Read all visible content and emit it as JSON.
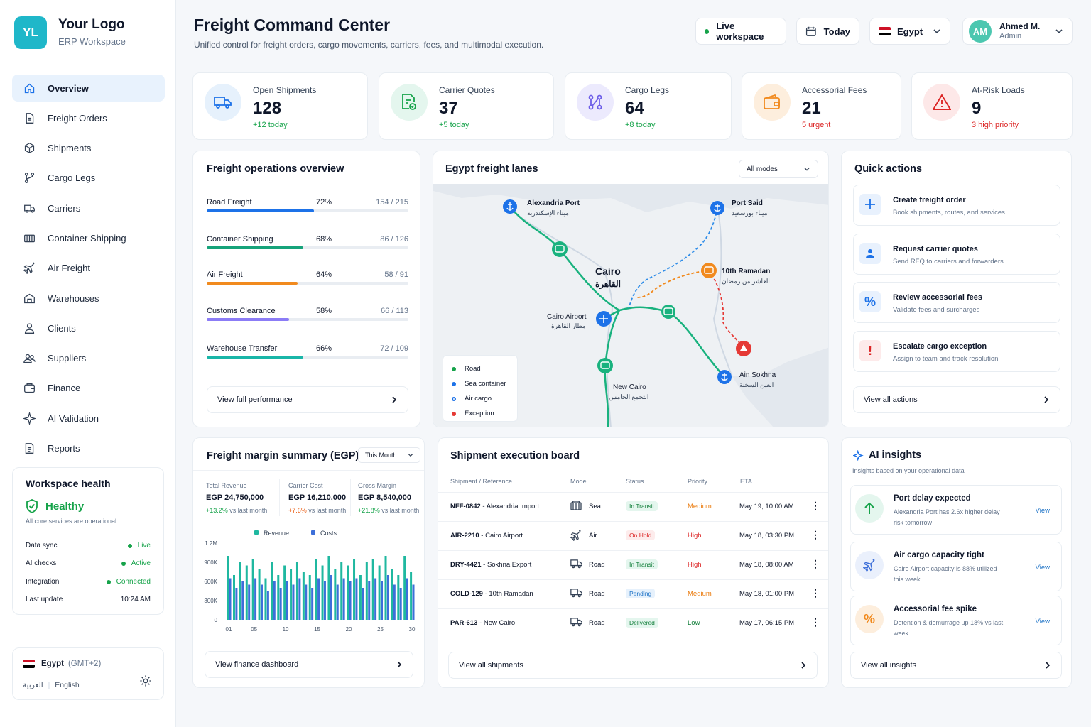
{
  "brand": {
    "initials": "YL",
    "title": "Your Logo",
    "subtitle": "ERP Workspace"
  },
  "nav": [
    {
      "label": "Overview",
      "icon": "home-icon"
    },
    {
      "label": "Freight Orders",
      "icon": "document-icon"
    },
    {
      "label": "Shipments",
      "icon": "box-icon"
    },
    {
      "label": "Cargo Legs",
      "icon": "route-icon"
    },
    {
      "label": "Carriers",
      "icon": "truck-icon"
    },
    {
      "label": "Container Shipping",
      "icon": "container-icon"
    },
    {
      "label": "Air Freight",
      "icon": "plane-icon"
    },
    {
      "label": "Warehouses",
      "icon": "warehouse-icon"
    },
    {
      "label": "Clients",
      "icon": "user-icon"
    },
    {
      "label": "Suppliers",
      "icon": "users-icon"
    },
    {
      "label": "Finance",
      "icon": "wallet-icon"
    },
    {
      "label": "AI Validation",
      "icon": "sparkle-icon"
    },
    {
      "label": "Reports",
      "icon": "report-icon"
    }
  ],
  "health": {
    "title": "Workspace health",
    "status": "Healthy",
    "desc": "All core services are operational",
    "rows": [
      {
        "label": "Data sync",
        "value": "Live"
      },
      {
        "label": "AI checks",
        "value": "Active"
      },
      {
        "label": "Integration",
        "value": "Connected"
      },
      {
        "label": "Last update",
        "value": "10:24 AM"
      }
    ]
  },
  "locale": {
    "country": "Egypt",
    "tz": "(GMT+2)",
    "lang_ar": "العربية",
    "sep": "|",
    "lang_en": "English"
  },
  "header": {
    "title": "Freight Command Center",
    "subtitle": "Unified control for freight orders, cargo movements, carriers, fees, and multimodal execution.",
    "live": "Live workspace",
    "date": "Today",
    "country": "Egypt",
    "user_initials": "AM",
    "user_name": "Ahmed M.",
    "user_role": "Admin"
  },
  "kpis": [
    {
      "label": "Open Shipments",
      "value": "128",
      "change": "+12 today"
    },
    {
      "label": "Carrier Quotes",
      "value": "37",
      "change": "+5 today"
    },
    {
      "label": "Cargo Legs",
      "value": "64",
      "change": "+8 today"
    },
    {
      "label": "Accessorial Fees",
      "value": "21",
      "change": "5 urgent"
    },
    {
      "label": "At-Risk Loads",
      "value": "9",
      "change": "3 high priority"
    }
  ],
  "ops": {
    "title": "Freight operations overview",
    "rows": [
      {
        "name": "Road Freight",
        "pct": "72%",
        "ratio": "154 / 215",
        "fill": 0.53,
        "color": "#1d72e8"
      },
      {
        "name": "Container Shipping",
        "pct": "68%",
        "ratio": "86 / 126",
        "fill": 0.48,
        "color": "#16a37a"
      },
      {
        "name": "Air Freight",
        "pct": "64%",
        "ratio": "58 / 91",
        "fill": 0.45,
        "color": "#f18a1e"
      },
      {
        "name": "Customs Clearance",
        "pct": "58%",
        "ratio": "66 / 113",
        "fill": 0.41,
        "color": "#8b7cf6"
      },
      {
        "name": "Warehouse Transfer",
        "pct": "66%",
        "ratio": "72 / 109",
        "fill": 0.48,
        "color": "#19b6a8"
      }
    ],
    "link": "View full performance"
  },
  "map": {
    "title": "Egypt freight lanes",
    "filter": "All modes",
    "labels": {
      "alex_en": "Alexandria Port",
      "alex_ar": "ميناء الإسكندرية",
      "said_en": "Port Said",
      "said_ar": "ميناء بورسعيد",
      "cairo_en": "Cairo",
      "cairo_ar": "القاهرة",
      "ramadan_en": "10th Ramadan",
      "ramadan_ar": "العاشر من رمضان",
      "airport_en": "Cairo Airport",
      "airport_ar": "مطار القاهرة",
      "sokhna_en": "Ain Sokhna",
      "sokhna_ar": "العين السخنة",
      "newcairo_en": "New Cairo",
      "newcairo_ar": "التجمع الخامس"
    },
    "legend": [
      {
        "label": "Road",
        "color": "#16a34a"
      },
      {
        "label": "Sea container",
        "color": "#1d72e8"
      },
      {
        "label": "Air cargo",
        "color": "#1d72e8"
      },
      {
        "label": "Exception",
        "color": "#e53935"
      }
    ]
  },
  "quick": {
    "title": "Quick actions",
    "items": [
      {
        "title": "Create freight order",
        "desc": "Book shipments, routes, and services"
      },
      {
        "title": "Request carrier quotes",
        "desc": "Send RFQ to carriers and forwarders"
      },
      {
        "title": "Review accessorial fees",
        "desc": "Validate fees and surcharges"
      },
      {
        "title": "Escalate cargo exception",
        "desc": "Assign to team and track resolution"
      }
    ],
    "link": "View all actions"
  },
  "finance": {
    "title": "Freight margin summary (EGP)",
    "period": "This Month",
    "metrics": [
      {
        "label": "Total Revenue",
        "value": "EGP 24,750,000",
        "delta": "+13.2%",
        "note": "vs last month"
      },
      {
        "label": "Carrier Cost",
        "value": "EGP 16,210,000",
        "delta": "+7.6%",
        "note": "vs last month"
      },
      {
        "label": "Gross Margin",
        "value": "EGP 8,540,000",
        "delta": "+21.8%",
        "note": "vs last month"
      }
    ],
    "link": "View finance dashboard"
  },
  "chart_data": {
    "type": "bar",
    "series": [
      {
        "name": "Revenue",
        "color": "#1fb8a0",
        "values": [
          1000,
          700,
          900,
          850,
          950,
          800,
          650,
          900,
          700,
          850,
          800,
          900,
          750,
          700,
          950,
          850,
          1000,
          800,
          900,
          850,
          950,
          700,
          900,
          950,
          850,
          1000,
          800,
          700,
          1000,
          750
        ]
      },
      {
        "name": "Costs",
        "color": "#3d6fd9",
        "values": [
          650,
          500,
          600,
          550,
          650,
          550,
          450,
          600,
          500,
          600,
          550,
          650,
          550,
          500,
          650,
          600,
          700,
          550,
          650,
          600,
          650,
          500,
          600,
          650,
          600,
          700,
          550,
          500,
          650,
          550
        ]
      }
    ],
    "categories": [
      "01",
      "02",
      "03",
      "04",
      "05",
      "06",
      "07",
      "08",
      "09",
      "10",
      "11",
      "12",
      "13",
      "14",
      "15",
      "16",
      "17",
      "18",
      "19",
      "20",
      "21",
      "22",
      "23",
      "24",
      "25",
      "26",
      "27",
      "28",
      "29",
      "30"
    ],
    "xticks": [
      "01",
      "05",
      "10",
      "15",
      "20",
      "25",
      "30"
    ],
    "yticks": [
      "1.2M",
      "900K",
      "600K",
      "300K",
      "0"
    ],
    "ylim": [
      0,
      1200
    ]
  },
  "board": {
    "title": "Shipment execution board",
    "headers": [
      "Shipment / Reference",
      "Mode",
      "Status",
      "Priority",
      "ETA"
    ],
    "rows": [
      {
        "id": "NFF-0842",
        "ref": "Alexandria Import",
        "mode": "Sea",
        "status": "In Transit",
        "priority": "Medium",
        "eta": "May 19, 10:00 AM"
      },
      {
        "id": "AIR-2210",
        "ref": "Cairo Airport",
        "mode": "Air",
        "status": "On Hold",
        "priority": "High",
        "eta": "May 18, 03:30 PM"
      },
      {
        "id": "DRY-4421",
        "ref": "Sokhna Export",
        "mode": "Road",
        "status": "In Transit",
        "priority": "High",
        "eta": "May 18, 08:00 AM"
      },
      {
        "id": "COLD-129",
        "ref": "10th Ramadan",
        "mode": "Road",
        "status": "Pending",
        "priority": "Medium",
        "eta": "May 18, 01:00 PM"
      },
      {
        "id": "PAR-613",
        "ref": "New Cairo",
        "mode": "Road",
        "status": "Delivered",
        "priority": "Low",
        "eta": "May 17, 06:15 PM"
      }
    ],
    "link": "View all shipments"
  },
  "insights": {
    "title": "AI insights",
    "subtitle": "Insights based on your operational data",
    "items": [
      {
        "title": "Port delay expected",
        "desc": "Alexandria Port has 2.6x higher delay risk tomorrow",
        "link": "View"
      },
      {
        "title": "Air cargo capacity tight",
        "desc": "Cairo Airport capacity is 88% utilized this week",
        "link": "View"
      },
      {
        "title": "Accessorial fee spike",
        "desc": "Detention & demurrage up 18% vs last week",
        "link": "View"
      }
    ],
    "link": "View all insights"
  },
  "colors": {
    "accent": "#1d72e8",
    "brand": "#1fb7c9",
    "success": "#16a34a",
    "danger": "#dc2626",
    "warning": "#f18a1e"
  }
}
